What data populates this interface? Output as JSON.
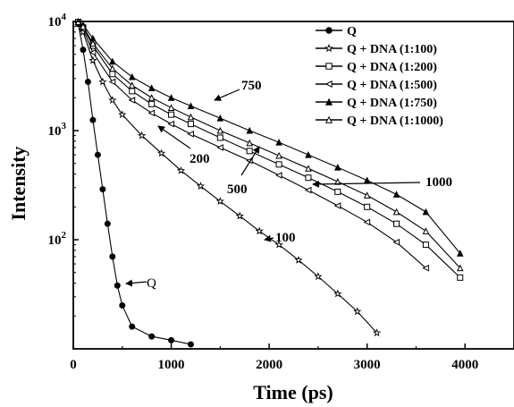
{
  "chart_data": {
    "type": "scatter",
    "title": "",
    "xlabel": "Time (ps)",
    "ylabel": "Intensity",
    "xlim": [
      0,
      4500
    ],
    "ylim": [
      10,
      10000
    ],
    "yscale": "log",
    "grid": false,
    "legend_position": "top-right",
    "x_ticks": [
      {
        "value": 0,
        "label": "0"
      },
      {
        "value": 1000,
        "label": "1000"
      },
      {
        "value": 2000,
        "label": "2000"
      },
      {
        "value": 3000,
        "label": "3000"
      },
      {
        "value": 4000,
        "label": "4000"
      }
    ],
    "y_ticks": [
      {
        "value": 100,
        "base": "10",
        "exp": "2"
      },
      {
        "value": 1000,
        "base": "10",
        "exp": "3"
      },
      {
        "value": 10000,
        "base": "10",
        "exp": "4"
      }
    ],
    "series": [
      {
        "name": "Q",
        "marker": "filled-circle",
        "x": [
          50,
          100,
          150,
          200,
          250,
          300,
          350,
          400,
          450,
          500,
          600,
          800,
          1000,
          1200
        ],
        "y": [
          9500,
          5500,
          2800,
          1250,
          600,
          290,
          140,
          70,
          38,
          25,
          16,
          13,
          12,
          11
        ]
      },
      {
        "name": "Q + DNA (1:100)",
        "marker": "open-star",
        "x": [
          50,
          100,
          200,
          300,
          400,
          500,
          700,
          900,
          1100,
          1300,
          1500,
          1700,
          1900,
          2100,
          2300,
          2500,
          2700,
          2900,
          3100
        ],
        "y": [
          9800,
          8000,
          4400,
          2800,
          1900,
          1400,
          900,
          620,
          430,
          310,
          225,
          165,
          120,
          90,
          65,
          46,
          32,
          22,
          14
        ]
      },
      {
        "name": "Q + DNA (1:200)",
        "marker": "open-square",
        "x": [
          50,
          100,
          200,
          400,
          600,
          800,
          1000,
          1200,
          1500,
          1800,
          2100,
          2400,
          2700,
          3000,
          3300,
          3600,
          3950
        ],
        "y": [
          9900,
          8800,
          6000,
          3300,
          2300,
          1750,
          1400,
          1150,
          860,
          650,
          490,
          370,
          275,
          200,
          140,
          90,
          45
        ]
      },
      {
        "name": "Q + DNA (1:500)",
        "marker": "open-left-triangle",
        "x": [
          50,
          100,
          200,
          400,
          600,
          800,
          1000,
          1200,
          1500,
          1800,
          2100,
          2400,
          2700,
          3000,
          3300,
          3600
        ],
        "y": [
          9900,
          8500,
          5200,
          2800,
          1900,
          1450,
          1150,
          930,
          700,
          530,
          390,
          285,
          205,
          145,
          95,
          55
        ]
      },
      {
        "name": "Q + DNA (1:750)",
        "marker": "filled-triangle",
        "x": [
          50,
          100,
          200,
          400,
          600,
          800,
          1000,
          1200,
          1500,
          1800,
          2100,
          2400,
          2700,
          3000,
          3300,
          3600,
          3950
        ],
        "y": [
          9900,
          9300,
          7000,
          4300,
          3100,
          2450,
          2000,
          1680,
          1300,
          1000,
          780,
          600,
          460,
          350,
          260,
          180,
          75
        ]
      },
      {
        "name": "Q + DNA (1:1000)",
        "marker": "open-triangle",
        "x": [
          50,
          100,
          200,
          400,
          600,
          800,
          1000,
          1200,
          1500,
          1800,
          2100,
          2400,
          2700,
          3000,
          3300,
          3600,
          3950
        ],
        "y": [
          9900,
          9000,
          6300,
          3700,
          2600,
          2000,
          1620,
          1330,
          1000,
          770,
          590,
          450,
          340,
          255,
          180,
          120,
          55
        ]
      }
    ],
    "annotations": [
      {
        "text": "750"
      },
      {
        "text": "200"
      },
      {
        "text": "500"
      },
      {
        "text": "1000"
      },
      {
        "text": "100"
      },
      {
        "text": "Q"
      }
    ]
  }
}
